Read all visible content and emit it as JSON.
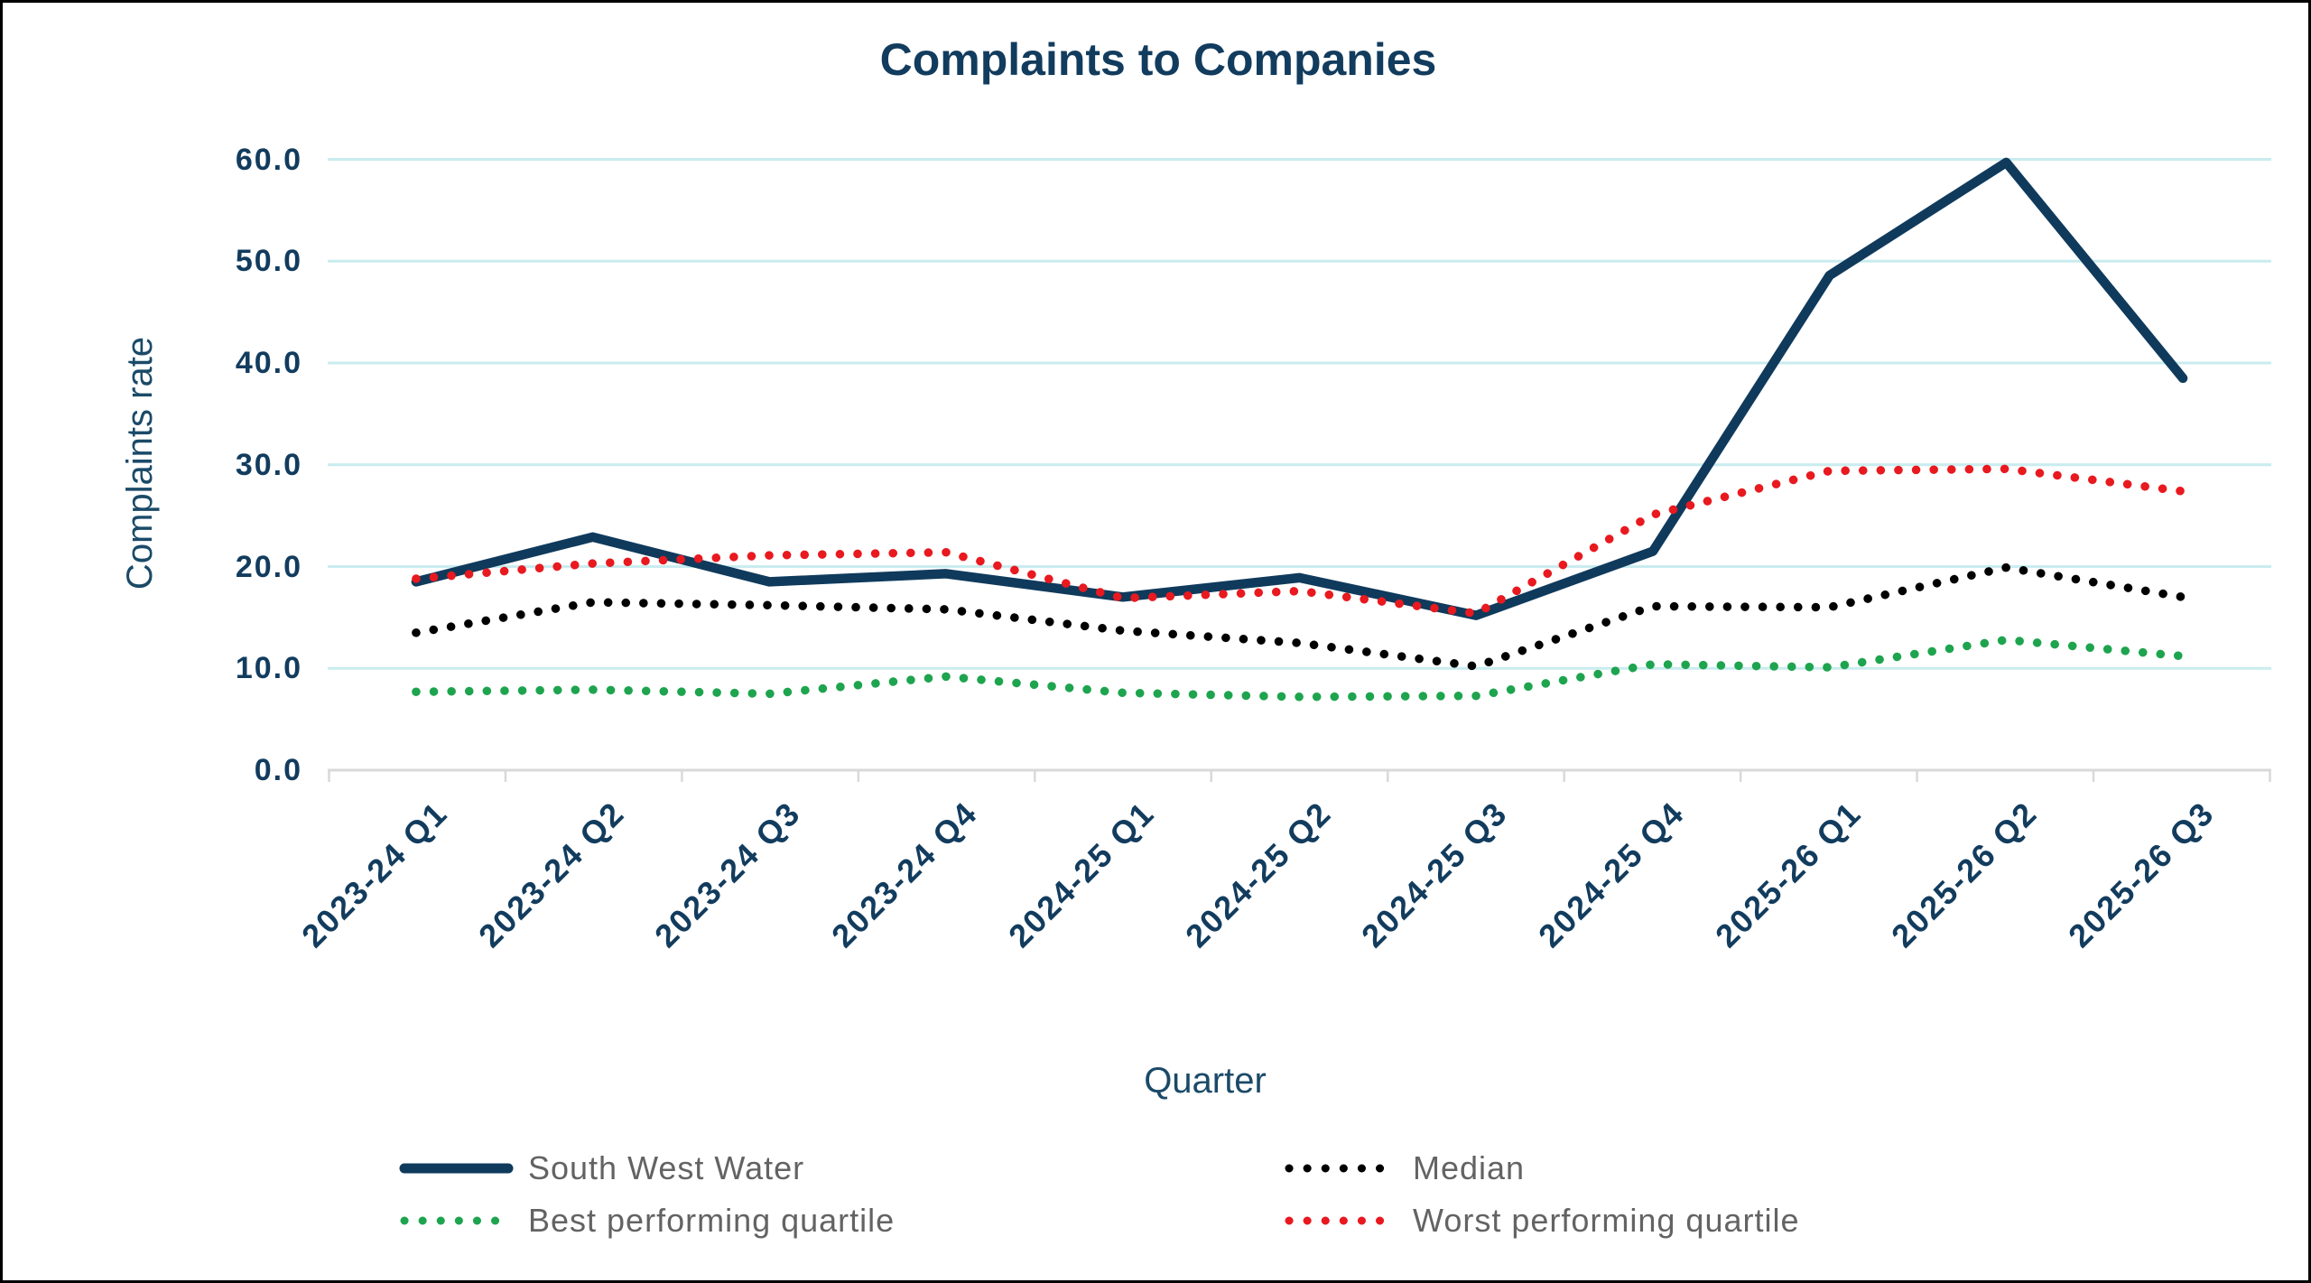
{
  "chart_data": {
    "type": "line",
    "title": "Complaints to Companies",
    "xlabel": "Quarter",
    "ylabel": "Complaints rate",
    "categories": [
      "2023-24 Q1",
      "2023-24 Q2",
      "2023-24 Q3",
      "2023-24 Q4",
      "2024-25 Q1",
      "2024-25 Q2",
      "2024-25 Q3",
      "2024-25 Q4",
      "2025-26 Q1",
      "2025-26 Q2",
      "2025-26 Q3"
    ],
    "series": [
      {
        "name": "South West Water",
        "style": "solid",
        "color": "#0f3a5c",
        "values": [
          18.5,
          22.9,
          18.5,
          19.3,
          17.0,
          18.9,
          15.2,
          21.5,
          48.6,
          59.7,
          38.5
        ]
      },
      {
        "name": "Median",
        "style": "dotted",
        "color": "#000000",
        "values": [
          13.5,
          16.5,
          16.2,
          15.8,
          13.7,
          12.5,
          10.2,
          16.1,
          16.0,
          19.9,
          17.0
        ]
      },
      {
        "name": "Best performing quartile",
        "style": "dotted",
        "color": "#1ea44e",
        "values": [
          7.7,
          7.9,
          7.5,
          9.2,
          7.6,
          7.2,
          7.3,
          10.4,
          10.1,
          12.8,
          11.2
        ]
      },
      {
        "name": "Worst performing quartile",
        "style": "dotted",
        "color": "#e8191f",
        "values": [
          18.8,
          20.3,
          21.1,
          21.4,
          16.9,
          17.6,
          15.4,
          25.1,
          29.4,
          29.6,
          27.4
        ]
      }
    ],
    "ylim": [
      0,
      60
    ],
    "y_tick_labels": [
      "0.0",
      "10.0",
      "20.0",
      "30.0",
      "40.0",
      "50.0",
      "60.0"
    ],
    "grid": "horizontal",
    "legend_position": "bottom"
  },
  "colors": {
    "background": "#ffffff",
    "border": "#000000",
    "gridline": "#c9ecef",
    "axis": "#d9d9d9",
    "navy_text": "#123c5e",
    "legend_text": "#636363"
  }
}
